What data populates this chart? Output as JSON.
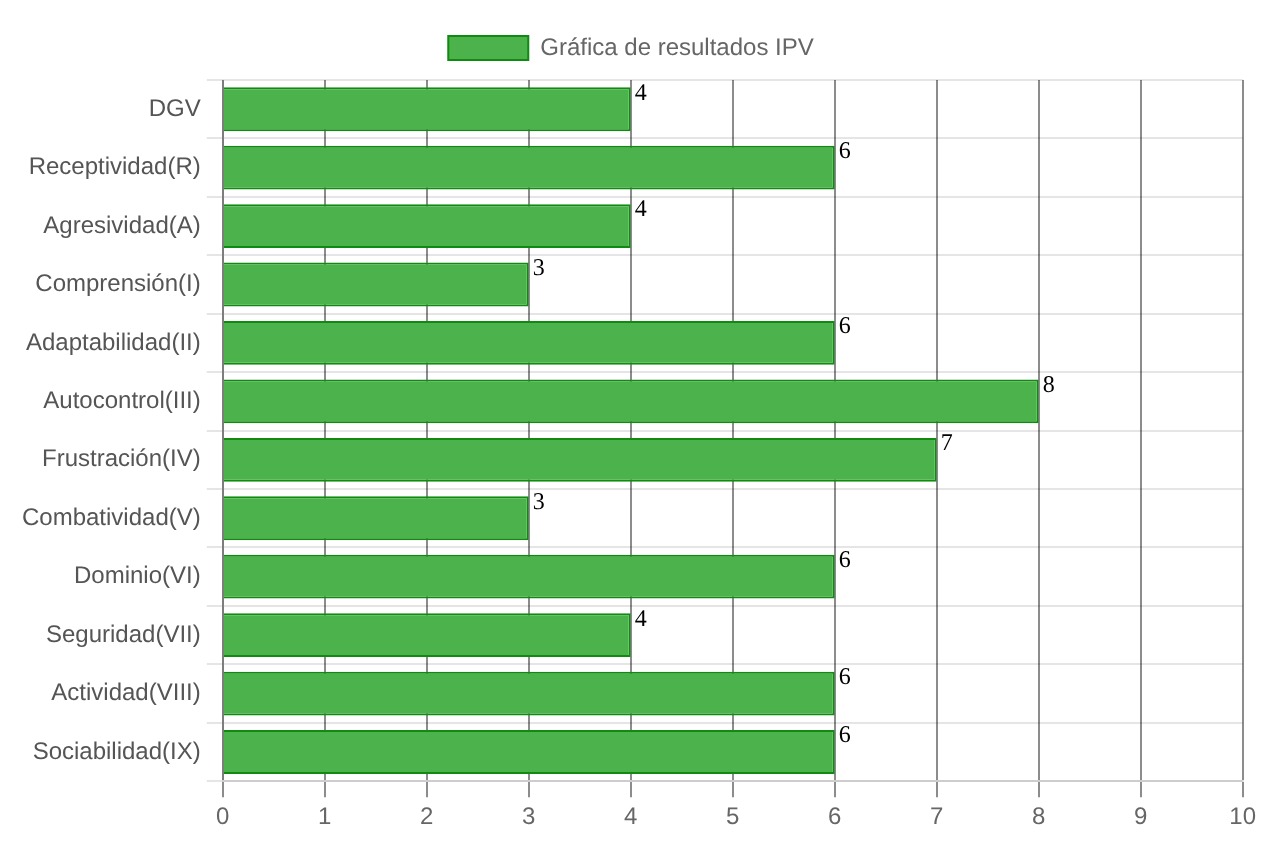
{
  "chart_data": {
    "type": "bar",
    "orientation": "horizontal",
    "categories": [
      "DGV",
      "Receptividad(R)",
      "Agresividad(A)",
      "Comprensión(I)",
      "Adaptabilidad(II)",
      "Autocontrol(III)",
      "Frustración(IV)",
      "Combatividad(V)",
      "Dominio(VI)",
      "Seguridad(VII)",
      "Actividad(VIII)",
      "Sociabilidad(IX)"
    ],
    "series": [
      {
        "name": "Gráfica de resultados IPV",
        "color": "#4cb34c",
        "values": [
          4,
          6,
          4,
          3,
          6,
          8,
          7,
          3,
          6,
          4,
          6,
          6
        ]
      }
    ],
    "xlim": [
      0,
      10
    ],
    "xticks": [
      0,
      1,
      2,
      3,
      4,
      5,
      6,
      7,
      8,
      9,
      10
    ],
    "grid": true,
    "legend": "top",
    "data_labels": true
  }
}
